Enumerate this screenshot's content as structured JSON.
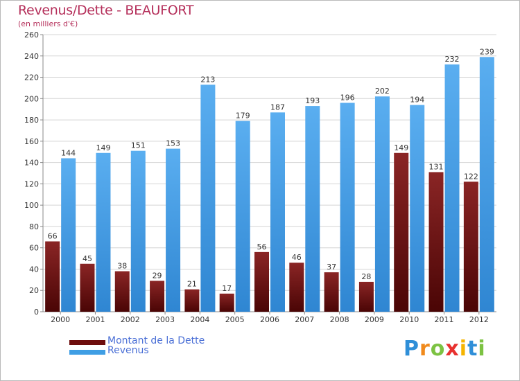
{
  "header": {
    "title": "Revenus/Dette - BEAUFORT",
    "subtitle": "(en milliers d'€)"
  },
  "chart_data": {
    "type": "bar",
    "categories": [
      "2000",
      "2001",
      "2002",
      "2003",
      "2004",
      "2005",
      "2006",
      "2007",
      "2008",
      "2009",
      "2010",
      "2011",
      "2012"
    ],
    "series": [
      {
        "name": "Montant de la Dette",
        "color": "#6e0d0d",
        "values": [
          66,
          45,
          38,
          29,
          21,
          17,
          56,
          46,
          37,
          28,
          149,
          131,
          122
        ]
      },
      {
        "name": "Revenus",
        "color": "#3f9ee4",
        "values": [
          144,
          149,
          151,
          153,
          213,
          179,
          187,
          193,
          196,
          202,
          194,
          232,
          239
        ]
      }
    ],
    "ylim": [
      0,
      260
    ],
    "yticks": [
      0,
      20,
      40,
      60,
      80,
      100,
      120,
      140,
      160,
      180,
      200,
      220,
      240,
      260
    ],
    "grid": true,
    "legend": "bottom-left"
  },
  "legend": {
    "items": [
      {
        "label": "Montant de la Dette",
        "color": "#6e0d0d"
      },
      {
        "label": "Revenus",
        "color": "#3f9ee4"
      }
    ]
  },
  "logo": {
    "letters": [
      {
        "ch": "P",
        "color": "#2f8fd8"
      },
      {
        "ch": "r",
        "color": "#f08a1c"
      },
      {
        "ch": "o",
        "color": "#7cc242"
      },
      {
        "ch": "x",
        "color": "#e8312f"
      },
      {
        "ch": "i",
        "color": "#f5b400"
      },
      {
        "ch": "t",
        "color": "#2f8fd8"
      },
      {
        "ch": "i",
        "color": "#7cc242"
      }
    ]
  }
}
